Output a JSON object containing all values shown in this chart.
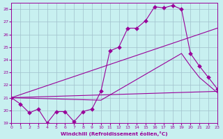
{
  "xlabel": "Windchill (Refroidissement éolien,°C)",
  "bg_color": "#c8f0f0",
  "grid_color": "#a0c0cc",
  "line_color": "#990099",
  "xlim": [
    0,
    23
  ],
  "ylim": [
    19,
    28.5
  ],
  "yticks": [
    19,
    20,
    21,
    22,
    23,
    24,
    25,
    26,
    27,
    28
  ],
  "xticks": [
    0,
    1,
    2,
    3,
    4,
    5,
    6,
    7,
    8,
    9,
    10,
    11,
    12,
    13,
    14,
    15,
    16,
    17,
    18,
    19,
    20,
    21,
    22,
    23
  ],
  "line1_x": [
    0,
    1,
    2,
    3,
    4,
    5,
    6,
    7,
    8,
    9,
    10,
    11,
    12,
    13,
    14,
    15,
    16,
    17,
    18,
    19,
    20,
    21,
    22,
    23
  ],
  "line1_y": [
    21.0,
    20.5,
    19.8,
    20.1,
    19.0,
    19.9,
    19.9,
    19.1,
    19.9,
    20.1,
    21.5,
    24.7,
    25.0,
    26.5,
    26.5,
    27.1,
    28.2,
    28.1,
    28.3,
    28.0,
    24.5,
    23.5,
    22.6,
    21.7
  ],
  "line2_x": [
    0,
    23
  ],
  "line2_y": [
    21.0,
    26.5
  ],
  "line3_x": [
    0,
    10,
    19,
    20,
    21,
    22,
    23
  ],
  "line3_y": [
    21.0,
    20.8,
    24.5,
    23.5,
    22.6,
    22.0,
    21.4
  ],
  "line4_x": [
    0,
    23
  ],
  "line4_y": [
    21.0,
    21.5
  ],
  "markersize": 3
}
